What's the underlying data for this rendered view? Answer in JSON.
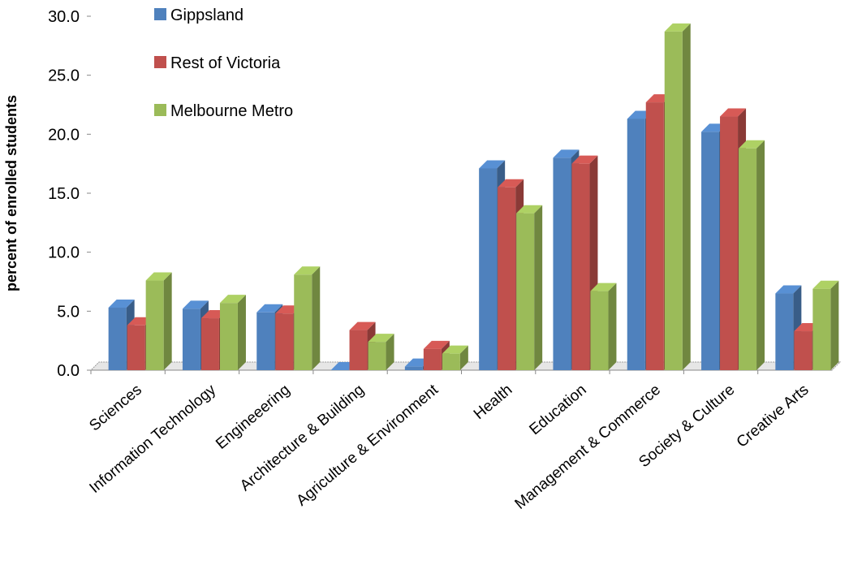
{
  "chart_data": {
    "type": "bar",
    "title": "",
    "xlabel": "",
    "ylabel": "percent of enrolled students",
    "ylim": [
      0,
      30
    ],
    "yticks": [
      "0.0",
      "5.0",
      "10.0",
      "15.0",
      "20.0",
      "25.0",
      "30.0"
    ],
    "grid": false,
    "legend_position": "top-left",
    "categories": [
      "Sciences",
      "Information Technology",
      "Engineeering",
      "Architecture & Building",
      "Agriculture & Environment",
      "Health",
      "Education",
      "Management & Commerce",
      "Society & Culture",
      "Creative Arts"
    ],
    "series": [
      {
        "name": "Gippsland",
        "color": "#4f81bd",
        "values": [
          5.3,
          5.2,
          4.9,
          0.0,
          0.3,
          17.1,
          18.0,
          21.3,
          20.2,
          6.5
        ]
      },
      {
        "name": "Rest of Victoria",
        "color": "#c0504d",
        "values": [
          3.8,
          4.4,
          4.8,
          3.4,
          1.8,
          15.5,
          17.5,
          22.7,
          21.5,
          3.3
        ]
      },
      {
        "name": "Melbourne Metro",
        "color": "#9bbb59",
        "values": [
          7.6,
          5.7,
          8.1,
          2.4,
          1.4,
          13.3,
          6.7,
          28.7,
          18.8,
          6.9
        ]
      }
    ]
  }
}
